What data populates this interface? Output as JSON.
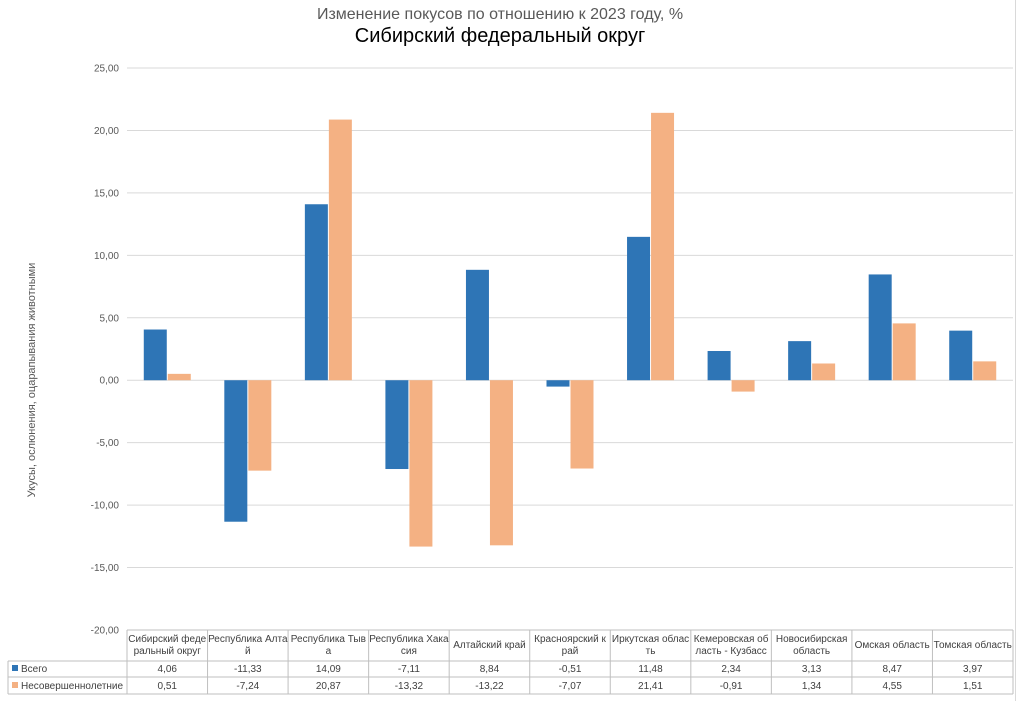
{
  "chart_data": {
    "type": "bar",
    "title": "Изменение покусов по отношению к 2023 году, %",
    "subtitle": "Сибирский федеральный округ",
    "ylabel": "Укусы, ослюнения, оцарапывания животными",
    "ylim": [
      -20,
      25
    ],
    "yticks": [
      "25,00",
      "20,00",
      "15,00",
      "10,00",
      "5,00",
      "0,00",
      "-5,00",
      "-10,00",
      "-15,00",
      "-20,00"
    ],
    "categories": [
      [
        "Сибирский феде",
        "ральный округ"
      ],
      [
        "Республика Алта",
        "й"
      ],
      [
        "Республика Тыв",
        "а"
      ],
      [
        "Республика Хака",
        "сия"
      ],
      [
        "Алтайский край"
      ],
      [
        "Красноярский к",
        "рай"
      ],
      [
        "Иркутская облас",
        "ть"
      ],
      [
        "Кемеровская об",
        "ласть - Кузбасс"
      ],
      [
        "Новосибирская",
        "область"
      ],
      [
        "Омская область"
      ],
      [
        "Томская область"
      ]
    ],
    "series": [
      {
        "name": "Всего",
        "color": "#2e75b6",
        "values": [
          4.06,
          -11.33,
          14.09,
          -7.11,
          8.84,
          -0.51,
          11.48,
          2.34,
          3.13,
          8.47,
          3.97
        ],
        "labels": [
          "4,06",
          "-11,33",
          "14,09",
          "-7,11",
          "8,84",
          "-0,51",
          "11,48",
          "2,34",
          "3,13",
          "8,47",
          "3,97"
        ]
      },
      {
        "name": "Несовершеннолетние",
        "color": "#f4b183",
        "values": [
          0.51,
          -7.24,
          20.87,
          -13.32,
          -13.22,
          -7.07,
          21.41,
          -0.91,
          1.34,
          4.55,
          1.51
        ],
        "labels": [
          "0,51",
          "-7,24",
          "20,87",
          "-13,32",
          "-13,22",
          "-7,07",
          "21,41",
          "-0,91",
          "1,34",
          "4,55",
          "1,51"
        ]
      }
    ],
    "grid": true,
    "legend": "data-table"
  }
}
